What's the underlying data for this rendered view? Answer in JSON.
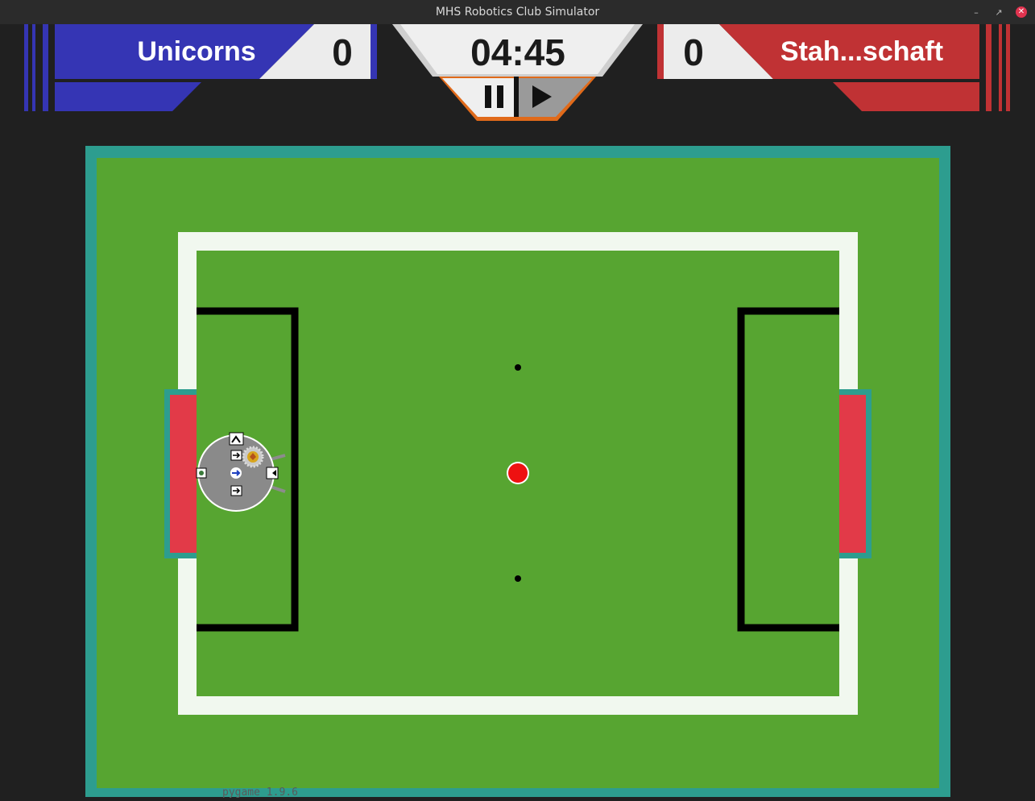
{
  "window": {
    "title": "MHS Robotics Club Simulator",
    "controls": [
      "minimize",
      "restore",
      "close"
    ]
  },
  "scoreboard": {
    "home": {
      "name": "Unicorns",
      "score": "0",
      "color": "#3535b4"
    },
    "away": {
      "name": "Stah...schaft",
      "score": "0",
      "color": "#c03234"
    },
    "timer": "04:45",
    "timer_accent": "#e06a1a",
    "buttons": {
      "pause": "pause-icon",
      "play": "play-icon"
    }
  },
  "field": {
    "outer_border_color": "#2d9d8f",
    "grass_color": "#57a531",
    "line_color": "#f1f8ef",
    "goal_color": "#e23a48",
    "ball_color": "#ee1111"
  },
  "robot": {
    "team": "home",
    "body_color": "#8a8a8a"
  },
  "footer": {
    "text": "pygame 1.9.6"
  }
}
